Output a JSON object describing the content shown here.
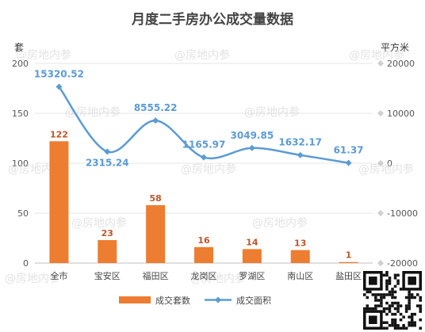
{
  "chart_data": {
    "type": "bar",
    "title": "月度二手房办公成交量数据",
    "y_left_label": "套",
    "y_right_label": "平方米",
    "categories": [
      "全市",
      "宝安区",
      "福田区",
      "龙岗区",
      "罗湖区",
      "南山区",
      "盐田区"
    ],
    "y_left_range": [
      0,
      200
    ],
    "y_left_ticks": [
      0,
      50,
      100,
      150,
      200
    ],
    "y_right_range": [
      -20000,
      20000
    ],
    "y_right_ticks": [
      -20000,
      -10000,
      0,
      10000,
      20000
    ],
    "grid": true,
    "legend_position": "bottom",
    "series": [
      {
        "name": "成交套数",
        "type": "bar",
        "axis": "left",
        "color": "#ed7d31",
        "values": [
          122,
          23,
          58,
          16,
          14,
          13,
          1
        ],
        "labels": [
          "122",
          "23",
          "58",
          "16",
          "14",
          "13",
          "1"
        ]
      },
      {
        "name": "成交面积",
        "type": "line",
        "axis": "right",
        "color": "#5b9bd5",
        "values": [
          15320.52,
          2315.24,
          8555.22,
          1165.97,
          3049.85,
          1632.17,
          61.37
        ],
        "labels": [
          "15320.52",
          "2315.24",
          "8555.22",
          "1165.97",
          "3049.85",
          "1632.17",
          "61.37"
        ]
      }
    ],
    "watermark": "@房地内参"
  }
}
